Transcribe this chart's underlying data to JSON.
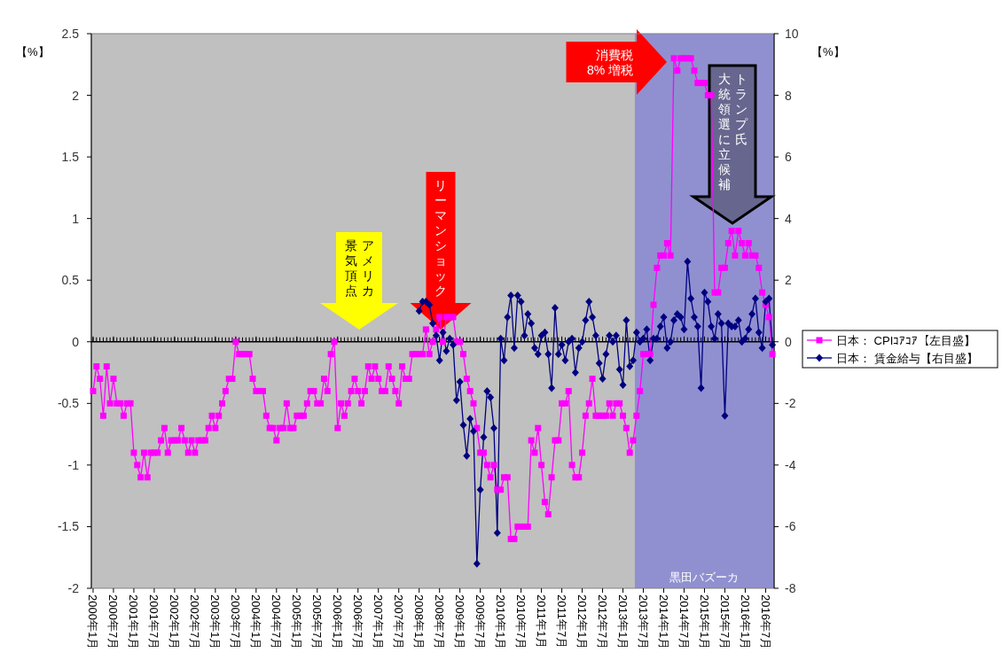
{
  "chart_data": {
    "type": "line",
    "ylabel": "【%】",
    "y2label": "【%】",
    "x": [
      "2000-01",
      "2000-02",
      "2000-03",
      "2000-04",
      "2000-05",
      "2000-06",
      "2000-07",
      "2000-08",
      "2000-09",
      "2000-10",
      "2000-11",
      "2000-12",
      "2001-01",
      "2001-02",
      "2001-03",
      "2001-04",
      "2001-05",
      "2001-06",
      "2001-07",
      "2001-08",
      "2001-09",
      "2001-10",
      "2001-11",
      "2001-12",
      "2002-01",
      "2002-02",
      "2002-03",
      "2002-04",
      "2002-05",
      "2002-06",
      "2002-07",
      "2002-08",
      "2002-09",
      "2002-10",
      "2002-11",
      "2002-12",
      "2003-01",
      "2003-02",
      "2003-03",
      "2003-04",
      "2003-05",
      "2003-06",
      "2003-07",
      "2003-08",
      "2003-09",
      "2003-10",
      "2003-11",
      "2003-12",
      "2004-01",
      "2004-02",
      "2004-03",
      "2004-04",
      "2004-05",
      "2004-06",
      "2004-07",
      "2004-08",
      "2004-09",
      "2004-10",
      "2004-11",
      "2004-12",
      "2005-01",
      "2005-02",
      "2005-03",
      "2005-04",
      "2005-05",
      "2005-06",
      "2005-07",
      "2005-08",
      "2005-09",
      "2005-10",
      "2005-11",
      "2005-12",
      "2006-01",
      "2006-02",
      "2006-03",
      "2006-04",
      "2006-05",
      "2006-06",
      "2006-07",
      "2006-08",
      "2006-09",
      "2006-10",
      "2006-11",
      "2006-12",
      "2007-01",
      "2007-02",
      "2007-03",
      "2007-04",
      "2007-05",
      "2007-06",
      "2007-07",
      "2007-08",
      "2007-09",
      "2007-10",
      "2007-11",
      "2007-12",
      "2008-01",
      "2008-02",
      "2008-03",
      "2008-04",
      "2008-05",
      "2008-06",
      "2008-07",
      "2008-08",
      "2008-09",
      "2008-10",
      "2008-11",
      "2008-12",
      "2009-01",
      "2009-02",
      "2009-03",
      "2009-04",
      "2009-05",
      "2009-06",
      "2009-07",
      "2009-08",
      "2009-09",
      "2009-10",
      "2009-11",
      "2009-12",
      "2010-01",
      "2010-02",
      "2010-03",
      "2010-04",
      "2010-05",
      "2010-06",
      "2010-07",
      "2010-08",
      "2010-09",
      "2010-10",
      "2010-11",
      "2010-12",
      "2011-01",
      "2011-02",
      "2011-03",
      "2011-04",
      "2011-05",
      "2011-06",
      "2011-07",
      "2011-08",
      "2011-09",
      "2011-10",
      "2011-11",
      "2011-12",
      "2012-01",
      "2012-02",
      "2012-03",
      "2012-04",
      "2012-05",
      "2012-06",
      "2012-07",
      "2012-08",
      "2012-09",
      "2012-10",
      "2012-11",
      "2012-12",
      "2013-01",
      "2013-02",
      "2013-03",
      "2013-04",
      "2013-05",
      "2013-06",
      "2013-07",
      "2013-08",
      "2013-09",
      "2013-10",
      "2013-11",
      "2013-12",
      "2014-01",
      "2014-02",
      "2014-03",
      "2014-04",
      "2014-05",
      "2014-06",
      "2014-07",
      "2014-08",
      "2014-09",
      "2014-10",
      "2014-11",
      "2014-12",
      "2015-01",
      "2015-02",
      "2015-03",
      "2015-04",
      "2015-05",
      "2015-06",
      "2015-07",
      "2015-08",
      "2015-09",
      "2015-10",
      "2015-11",
      "2015-12",
      "2016-01",
      "2016-02",
      "2016-03",
      "2016-04",
      "2016-05",
      "2016-06",
      "2016-07",
      "2016-08",
      "2016-09"
    ],
    "series": [
      {
        "name": "日本： CPIｺｱｺｱ【左目盛】",
        "color": "#ff00ff",
        "marker": "square",
        "values": [
          -0.4,
          -0.2,
          -0.3,
          -0.6,
          -0.2,
          -0.5,
          -0.3,
          -0.5,
          -0.5,
          -0.6,
          -0.5,
          -0.5,
          -0.9,
          -1.0,
          -1.1,
          -0.9,
          -1.1,
          -0.9,
          -0.9,
          -0.9,
          -0.8,
          -0.7,
          -0.9,
          -0.8,
          -0.8,
          -0.8,
          -0.7,
          -0.8,
          -0.9,
          -0.8,
          -0.9,
          -0.8,
          -0.8,
          -0.8,
          -0.7,
          -0.6,
          -0.7,
          -0.6,
          -0.5,
          -0.4,
          -0.3,
          -0.3,
          0.0,
          -0.1,
          -0.1,
          -0.1,
          -0.1,
          -0.3,
          -0.4,
          -0.4,
          -0.4,
          -0.6,
          -0.7,
          -0.7,
          -0.8,
          -0.7,
          -0.7,
          -0.5,
          -0.7,
          -0.7,
          -0.6,
          -0.6,
          -0.6,
          -0.5,
          -0.4,
          -0.4,
          -0.5,
          -0.5,
          -0.3,
          -0.4,
          -0.1,
          0.0,
          -0.7,
          -0.5,
          -0.6,
          -0.5,
          -0.4,
          -0.3,
          -0.4,
          -0.5,
          -0.4,
          -0.2,
          -0.3,
          -0.2,
          -0.3,
          -0.4,
          -0.4,
          -0.2,
          -0.3,
          -0.4,
          -0.5,
          -0.2,
          -0.3,
          -0.3,
          -0.1,
          -0.1,
          -0.1,
          -0.1,
          0.1,
          -0.1,
          0.0,
          0.1,
          0.2,
          0.0,
          0.2,
          0.2,
          0.2,
          0.0,
          0.0,
          -0.1,
          -0.3,
          -0.4,
          -0.5,
          -0.7,
          -0.9,
          -0.9,
          -1.0,
          -1.1,
          -1.0,
          -1.2,
          -1.2,
          -1.1,
          -1.1,
          -1.6,
          -1.6,
          -1.5,
          -1.5,
          -1.5,
          -1.5,
          -0.8,
          -0.9,
          -0.7,
          -1.0,
          -1.3,
          -1.4,
          -1.1,
          -0.8,
          -0.8,
          -0.5,
          -0.5,
          -0.4,
          -1.0,
          -1.1,
          -1.1,
          -0.9,
          -0.6,
          -0.5,
          -0.3,
          -0.6,
          -0.6,
          -0.6,
          -0.6,
          -0.5,
          -0.6,
          -0.5,
          -0.5,
          -0.6,
          -0.7,
          -0.9,
          -0.8,
          -0.6,
          -0.4,
          -0.1,
          -0.1,
          -0.1,
          0.3,
          0.6,
          0.7,
          0.7,
          0.8,
          0.7,
          2.3,
          2.2,
          2.3,
          2.3,
          2.3,
          2.3,
          2.2,
          2.1,
          2.1,
          2.1,
          2.0,
          2.0,
          0.4,
          0.4,
          0.6,
          0.6,
          0.8,
          0.9,
          0.7,
          0.9,
          0.8,
          0.7,
          0.8,
          0.7,
          0.7,
          0.6,
          0.4,
          0.3,
          0.2,
          -0.1
        ]
      },
      {
        "name": "日本： 賃金給与【右目盛】",
        "color": "#000080",
        "marker": "diamond",
        "axis": "y2",
        "x": [
          "2008-01",
          "2008-02",
          "2008-03",
          "2008-04",
          "2008-05",
          "2008-06",
          "2008-07",
          "2008-08",
          "2008-09",
          "2008-10",
          "2008-11",
          "2008-12",
          "2009-01",
          "2009-02",
          "2009-03",
          "2009-04",
          "2009-05",
          "2009-06",
          "2009-07",
          "2009-08",
          "2009-09",
          "2009-10",
          "2009-11",
          "2009-12",
          "2010-01",
          "2010-02",
          "2010-03",
          "2010-04",
          "2010-05",
          "2010-06",
          "2010-07",
          "2010-08",
          "2010-09",
          "2010-10",
          "2010-11",
          "2010-12",
          "2011-01",
          "2011-02",
          "2011-03",
          "2011-04",
          "2011-05",
          "2011-06",
          "2011-07",
          "2011-08",
          "2011-09",
          "2011-10",
          "2011-11",
          "2011-12",
          "2012-01",
          "2012-02",
          "2012-03",
          "2012-04",
          "2012-05",
          "2012-06",
          "2012-07",
          "2012-08",
          "2012-09",
          "2012-10",
          "2012-11",
          "2012-12",
          "2013-01",
          "2013-02",
          "2013-03",
          "2013-04",
          "2013-05",
          "2013-06",
          "2013-07",
          "2013-08",
          "2013-09",
          "2013-10",
          "2013-11",
          "2013-12",
          "2014-01",
          "2014-02",
          "2014-03",
          "2014-04",
          "2014-05",
          "2014-06",
          "2014-07",
          "2014-08",
          "2014-09",
          "2014-10",
          "2014-11",
          "2014-12",
          "2015-01",
          "2015-02",
          "2015-03",
          "2015-04",
          "2015-05",
          "2015-06",
          "2015-07",
          "2015-08",
          "2015-09",
          "2015-10",
          "2015-11",
          "2015-12",
          "2016-01",
          "2016-02",
          "2016-03",
          "2016-04",
          "2016-05",
          "2016-06",
          "2016-07",
          "2016-08",
          "2016-09"
        ],
        "values": [
          1.0,
          1.3,
          1.3,
          1.2,
          0.6,
          0.2,
          -0.6,
          0.3,
          -0.3,
          0.1,
          -0.1,
          -1.9,
          -1.3,
          -2.7,
          -3.7,
          -2.5,
          -2.9,
          -7.2,
          -4.8,
          -3.1,
          -1.6,
          -1.8,
          -2.8,
          -6.2,
          0.1,
          -0.6,
          0.8,
          1.5,
          -0.2,
          1.5,
          1.3,
          0.2,
          0.9,
          0.6,
          -0.2,
          -0.4,
          0.2,
          0.3,
          -0.4,
          -1.5,
          1.1,
          -0.4,
          -0.1,
          -0.6,
          0.0,
          0.1,
          -1.0,
          -0.2,
          0.0,
          0.7,
          1.3,
          0.8,
          0.2,
          -0.7,
          -1.2,
          -0.4,
          0.2,
          0.0,
          0.2,
          -0.9,
          -1.4,
          0.7,
          -0.8,
          -0.6,
          0.3,
          0.0,
          0.1,
          0.4,
          -0.6,
          0.1,
          0.1,
          0.5,
          0.8,
          -0.2,
          0.0,
          0.7,
          0.9,
          0.8,
          0.4,
          2.6,
          1.4,
          0.8,
          0.5,
          -1.5,
          1.6,
          1.3,
          0.5,
          0.1,
          0.9,
          0.6,
          -2.4,
          0.6,
          0.5,
          0.5,
          0.7,
          0.0,
          0.1,
          0.4,
          0.9,
          1.4,
          0.3,
          -0.2,
          1.3,
          1.4,
          -0.1
        ]
      }
    ],
    "ylim": [
      -2,
      2.5
    ],
    "yticks": [
      -2,
      -1.5,
      -1,
      -0.5,
      0,
      0.5,
      1,
      1.5,
      2,
      2.5
    ],
    "y2lim": [
      -8,
      10
    ],
    "y2ticks": [
      -8,
      -6,
      -4,
      -2,
      0,
      2,
      4,
      6,
      8,
      10
    ],
    "xlim": [
      "1999-12-16",
      "2016-09-16"
    ],
    "xticks": [
      {
        "value": "2000-01",
        "label": "2000年1月"
      },
      {
        "value": "2000-07",
        "label": "2000年7月"
      },
      {
        "value": "2001-01",
        "label": "2001年1月"
      },
      {
        "value": "2001-07",
        "label": "2001年7月"
      },
      {
        "value": "2002-01",
        "label": "2002年1月"
      },
      {
        "value": "2002-07",
        "label": "2002年7月"
      },
      {
        "value": "2003-01",
        "label": "2003年1月"
      },
      {
        "value": "2003-07",
        "label": "2003年7月"
      },
      {
        "value": "2004-01",
        "label": "2004年1月"
      },
      {
        "value": "2004-07",
        "label": "2004年7月"
      },
      {
        "value": "2005-01",
        "label": "2005年1月"
      },
      {
        "value": "2005-07",
        "label": "2005年7月"
      },
      {
        "value": "2006-01",
        "label": "2006年1月"
      },
      {
        "value": "2006-07",
        "label": "2006年7月"
      },
      {
        "value": "2007-01",
        "label": "2007年1月"
      },
      {
        "value": "2007-07",
        "label": "2007年7月"
      },
      {
        "value": "2008-01",
        "label": "2008年1月"
      },
      {
        "value": "2008-07",
        "label": "2008年7月"
      },
      {
        "value": "2009-01",
        "label": "2009年1月"
      },
      {
        "value": "2009-07",
        "label": "2009年7月"
      },
      {
        "value": "2010-01",
        "label": "2010年1月"
      },
      {
        "value": "2010-07",
        "label": "2010年7月"
      },
      {
        "value": "2011-01",
        "label": "2011年1月"
      },
      {
        "value": "2011-07",
        "label": "2011年7月"
      },
      {
        "value": "2012-01",
        "label": "2012年1月"
      },
      {
        "value": "2012-07",
        "label": "2012年7月"
      },
      {
        "value": "2013-01",
        "label": "2013年1月"
      },
      {
        "value": "2013-07",
        "label": "2013年7月"
      },
      {
        "value": "2014-01",
        "label": "2014年1月"
      },
      {
        "value": "2014-07",
        "label": "2014年7月"
      },
      {
        "value": "2015-01",
        "label": "2015年1月"
      },
      {
        "value": "2015-07",
        "label": "2015年7月"
      },
      {
        "value": "2016-01",
        "label": "2016年1月"
      },
      {
        "value": "2016-07",
        "label": "2016年7月"
      }
    ],
    "bands": [
      {
        "axis": "x",
        "from": "2013-04-16",
        "to": "2016-09-16",
        "label": "黒田バズーカ",
        "color": "#9090d0"
      }
    ],
    "annotations": [
      "アメリカ景気頂点",
      "リーマンショック",
      "消費税8% 増税",
      "トランプ氏",
      "大統領選に立候補"
    ],
    "legend": "right"
  }
}
